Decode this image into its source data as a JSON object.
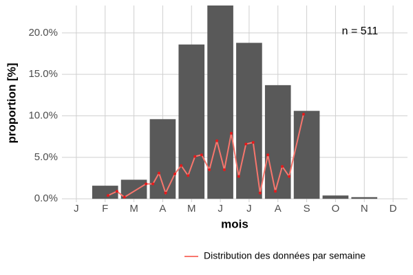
{
  "chart_data": {
    "type": "bar",
    "annotation": "n = 511",
    "x_label": "mois",
    "y_label": "proportion [%]",
    "categories": [
      "J",
      "F",
      "M",
      "A",
      "M",
      "J",
      "J",
      "A",
      "S",
      "O",
      "N",
      "D"
    ],
    "values": [
      0,
      1.58,
      2.3,
      9.6,
      18.6,
      23.4,
      18.8,
      13.7,
      10.6,
      0.4,
      0.2,
      0
    ],
    "color": "#595959",
    "xlim": [
      0.5,
      12.5
    ],
    "ylim": [
      -0.4,
      23.3
    ],
    "yticks": [
      {
        "value": 0,
        "label": "0.0%"
      },
      {
        "value": 5,
        "label": "5.0%"
      },
      {
        "value": 10,
        "label": "10.0%"
      },
      {
        "value": 15,
        "label": "15.0%"
      },
      {
        "value": 20,
        "label": "20.0%"
      }
    ],
    "grid": true,
    "legend_position": "bottom-right",
    "overlay": {
      "type": "line",
      "name": "Distribution des données par semaine",
      "color": "#f8766d",
      "point_color": "#e41a1c",
      "x": [
        2.1,
        2.41,
        2.67,
        3.42,
        3.66,
        3.87,
        4.1,
        4.42,
        4.64,
        4.88,
        5.12,
        5.35,
        5.62,
        5.88,
        6.14,
        6.38,
        6.64,
        6.89,
        7.14,
        7.38,
        7.65,
        7.91,
        8.15,
        8.39,
        8.89
      ],
      "values": [
        0.4,
        0.9,
        0.2,
        1.8,
        1.8,
        3.1,
        0.7,
        3.0,
        4.0,
        2.8,
        5.1,
        5.3,
        3.5,
        7.0,
        3.5,
        7.9,
        2.7,
        6.6,
        6.8,
        0.7,
        5.3,
        0.9,
        3.9,
        2.7,
        10.2
      ]
    }
  }
}
